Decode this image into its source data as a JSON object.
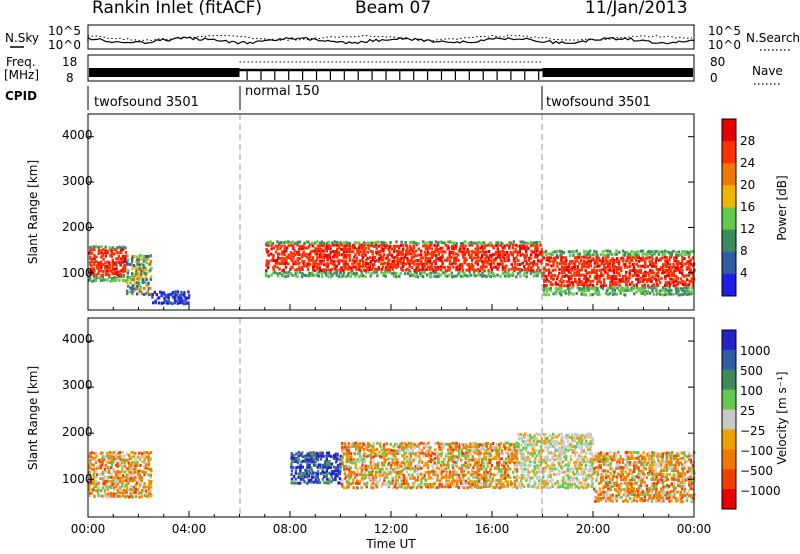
{
  "header": {
    "title": "Rankin Inlet (fitACF)",
    "beam": "Beam 07",
    "date": "11/Jan/2013"
  },
  "noise_panel": {
    "left_label": "N.Sky",
    "right_label": "N.Search",
    "left_ticks": [
      "10^5",
      "10^0"
    ],
    "right_ticks": [
      "10^5",
      "10^0"
    ]
  },
  "freq_panel": {
    "left_label_1": "Freq.",
    "left_label_2": "[MHz]",
    "right_label": "Nave",
    "left_ticks": [
      "18",
      "8"
    ],
    "right_ticks": [
      "80",
      "0"
    ]
  },
  "cpid": {
    "label": "CPID",
    "segments": [
      {
        "name": "twofsound 3501",
        "start_hour": 0,
        "end_hour": 6
      },
      {
        "name": "normal 150",
        "start_hour": 6,
        "end_hour": 18
      },
      {
        "name": "twofsound 3501",
        "start_hour": 18,
        "end_hour": 24
      }
    ]
  },
  "x_axis": {
    "label": "Time UT",
    "ticks": [
      "00:00",
      "04:00",
      "08:00",
      "12:00",
      "16:00",
      "20:00",
      "00:00"
    ],
    "range_hours": [
      0,
      24
    ]
  },
  "power_panel": {
    "ylabel": "Slant Range [km]",
    "yticks": [
      "1000",
      "2000",
      "3000",
      "4000"
    ],
    "colorbar_label": "Power [dB]",
    "colorbar_ticks": [
      "4",
      "8",
      "12",
      "16",
      "20",
      "24",
      "28"
    ],
    "colors": [
      "#1e1ee6",
      "#2f5ba8",
      "#3d8a5a",
      "#64c84a",
      "#f0b400",
      "#f07800",
      "#ff3000",
      "#e60000"
    ]
  },
  "velocity_panel": {
    "ylabel": "Slant Range [km]",
    "yticks": [
      "1000",
      "2000",
      "3000",
      "4000"
    ],
    "colorbar_label": "Velocity [m s⁻¹]",
    "colorbar_ticks": [
      "1000",
      "500",
      "100",
      "25",
      "−25",
      "−100",
      "−500",
      "−1000"
    ],
    "colors": [
      "#2222cc",
      "#2f5ba8",
      "#3d8a5a",
      "#64c84a",
      "#c8c8c8",
      "#f0a000",
      "#f07800",
      "#f04000",
      "#e60000"
    ]
  },
  "chart_data": {
    "type": "heatmap",
    "x_range_hours": [
      0,
      24
    ],
    "y_range_km": [
      180,
      4500
    ],
    "mode_changes_hours": [
      6,
      18
    ],
    "power_bands": [
      {
        "t0": 0.0,
        "t1": 1.5,
        "r0": 800,
        "r1": 1600,
        "level": "high"
      },
      {
        "t0": 1.5,
        "t1": 2.5,
        "r0": 500,
        "r1": 1400,
        "level": "medium"
      },
      {
        "t0": 2.5,
        "t1": 4.0,
        "r0": 300,
        "r1": 600,
        "level": "low"
      },
      {
        "t0": 7.0,
        "t1": 18.0,
        "r0": 900,
        "r1": 1700,
        "level": "high"
      },
      {
        "t0": 18.0,
        "t1": 24.0,
        "r0": 500,
        "r1": 1500,
        "level": "high"
      }
    ],
    "velocity_bands": [
      {
        "t0": 0.0,
        "t1": 2.5,
        "r0": 600,
        "r1": 1600,
        "sign": "negative"
      },
      {
        "t0": 8.0,
        "t1": 10.0,
        "r0": 900,
        "r1": 1600,
        "sign": "positive"
      },
      {
        "t0": 10.0,
        "t1": 17.0,
        "r0": 800,
        "r1": 1800,
        "sign": "negative"
      },
      {
        "t0": 17.0,
        "t1": 20.0,
        "r0": 800,
        "r1": 2000,
        "sign": "near-zero"
      },
      {
        "t0": 20.0,
        "t1": 24.0,
        "r0": 500,
        "r1": 1600,
        "sign": "negative"
      }
    ]
  }
}
